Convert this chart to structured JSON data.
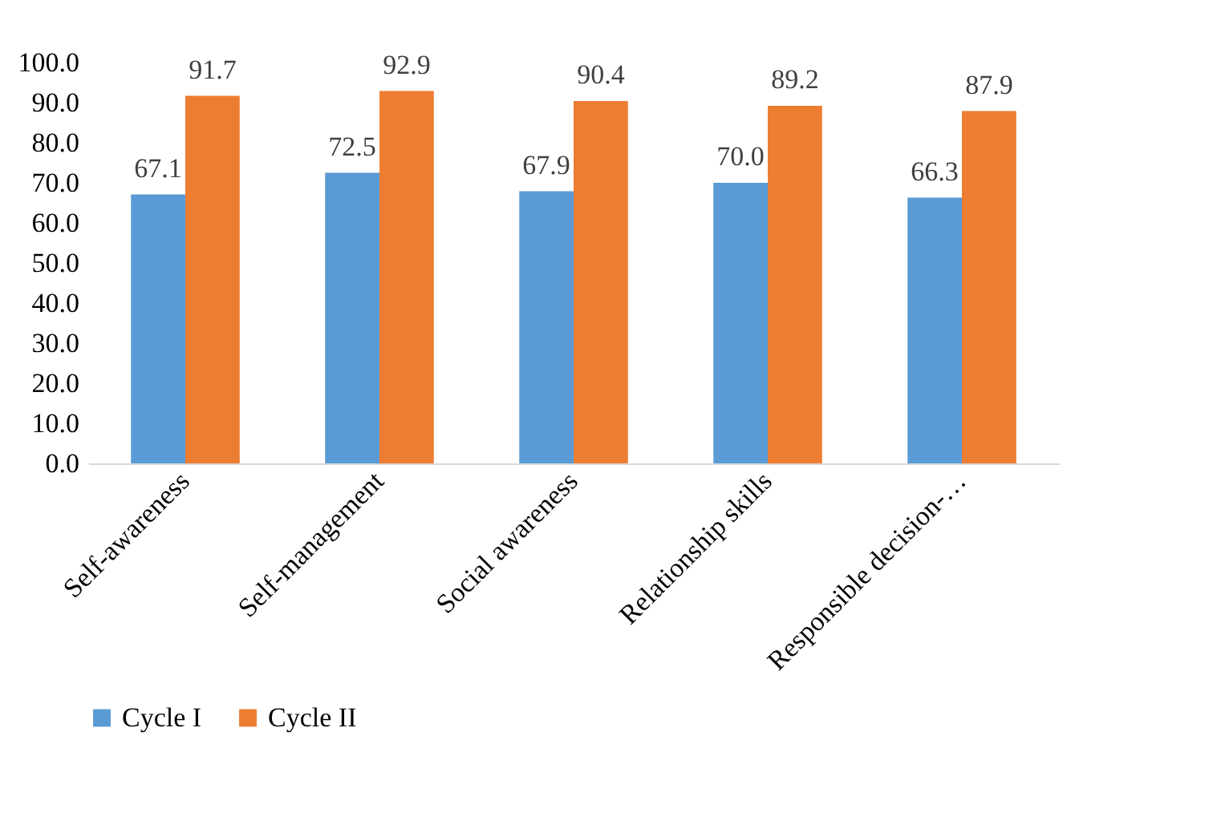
{
  "chart_data": {
    "type": "bar",
    "categories": [
      "Self-awareness",
      "Self-management",
      "Social awareness",
      "Relationship skills",
      "Responsible decision-…"
    ],
    "series": [
      {
        "name": "Cycle I",
        "color": "#5b9bd5",
        "values": [
          67.1,
          72.5,
          67.9,
          70.0,
          66.3
        ],
        "value_labels": [
          "67.1",
          "72.5",
          "67.9",
          "70.0",
          "66.3"
        ]
      },
      {
        "name": "Cycle II",
        "color": "#ed7d31",
        "values": [
          91.7,
          92.9,
          90.4,
          89.2,
          87.9
        ],
        "value_labels": [
          "91.7",
          "92.9",
          "90.4",
          "89.2",
          "87.9"
        ]
      }
    ],
    "ylim": [
      0,
      100
    ],
    "yticks": [
      {
        "value": 0,
        "label": "0.0"
      },
      {
        "value": 10,
        "label": "10.0"
      },
      {
        "value": 20,
        "label": "20.0"
      },
      {
        "value": 30,
        "label": "30.0"
      },
      {
        "value": 40,
        "label": "40.0"
      },
      {
        "value": 50,
        "label": "50.0"
      },
      {
        "value": 60,
        "label": "60.0"
      },
      {
        "value": 70,
        "label": "70.0"
      },
      {
        "value": 80,
        "label": "80.0"
      },
      {
        "value": 90,
        "label": "90.0"
      },
      {
        "value": 100,
        "label": "100.0"
      }
    ],
    "data_labels": true,
    "grid": false,
    "legend": "bottom"
  }
}
